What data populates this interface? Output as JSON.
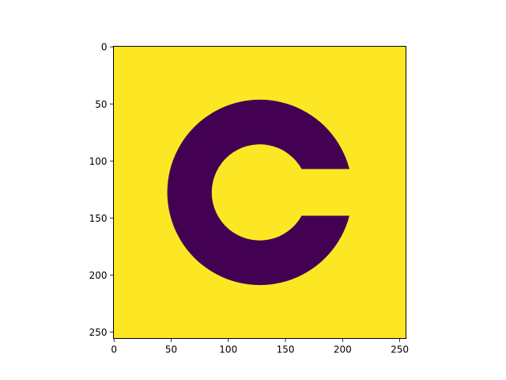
{
  "chart_data": {
    "type": "heatmap",
    "title": "",
    "xlabel": "",
    "ylabel": "",
    "image_size": [
      256,
      256
    ],
    "xlim": [
      -0.5,
      255.5
    ],
    "ylim": [
      255.5,
      -0.5
    ],
    "y_axis_inverted": true,
    "x_ticks": [
      0,
      50,
      100,
      150,
      200,
      250
    ],
    "y_ticks": [
      0,
      50,
      100,
      150,
      200,
      250
    ],
    "colormap": "viridis",
    "background_value": 1,
    "shape_value": 0,
    "background_color": "#fde725",
    "shape_color": "#440154",
    "shape": {
      "kind": "annulus-sector (C shape)",
      "center": [
        127.5,
        127.5
      ],
      "outer_radius": 81,
      "inner_radius": 42,
      "gap_y_range": [
        107,
        148
      ],
      "gap_x_start": 165,
      "gap_x_end": 206
    },
    "grid": false,
    "legend": "none"
  }
}
